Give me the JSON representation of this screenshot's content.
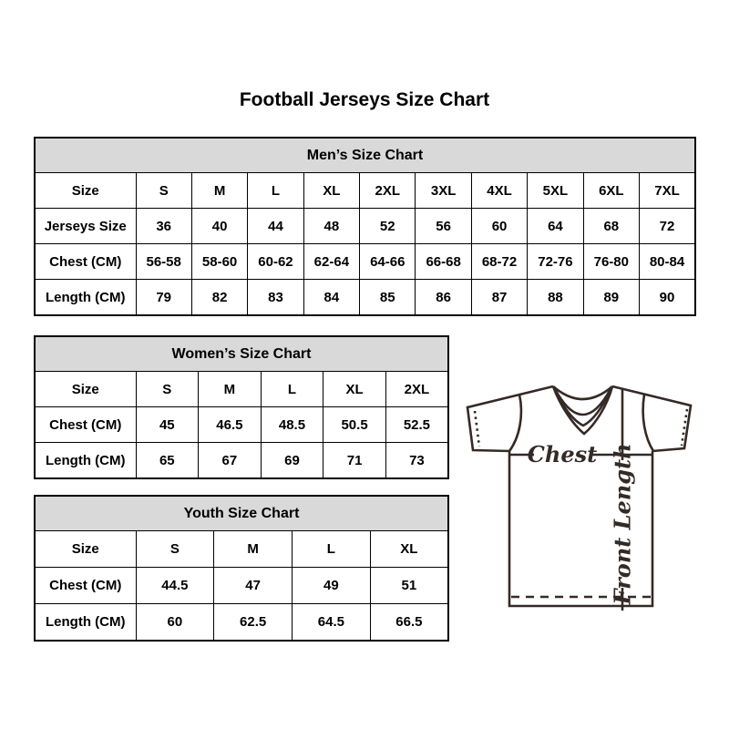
{
  "page": {
    "title": "Football Jerseys Size Chart"
  },
  "colors": {
    "background": "#ffffff",
    "table_header_bg": "#d9d9d9",
    "table_border": "#000000",
    "text": "#000000",
    "diagram_line": "#342a26"
  },
  "tables": {
    "mens": {
      "title": "Men’s Size Chart",
      "rows": [
        [
          "Size",
          "S",
          "M",
          "L",
          "XL",
          "2XL",
          "3XL",
          "4XL",
          "5XL",
          "6XL",
          "7XL"
        ],
        [
          "Jerseys Size",
          "36",
          "40",
          "44",
          "48",
          "52",
          "56",
          "60",
          "64",
          "68",
          "72"
        ],
        [
          "Chest (CM)",
          "56-58",
          "58-60",
          "60-62",
          "62-64",
          "64-66",
          "66-68",
          "68-72",
          "72-76",
          "76-80",
          "80-84"
        ],
        [
          "Length (CM)",
          "79",
          "82",
          "83",
          "84",
          "85",
          "86",
          "87",
          "88",
          "89",
          "90"
        ]
      ]
    },
    "womens": {
      "title": "Women’s Size Chart",
      "rows": [
        [
          "Size",
          "S",
          "M",
          "L",
          "XL",
          "2XL"
        ],
        [
          "Chest (CM)",
          "45",
          "46.5",
          "48.5",
          "50.5",
          "52.5"
        ],
        [
          "Length (CM)",
          "65",
          "67",
          "69",
          "71",
          "73"
        ]
      ]
    },
    "youth": {
      "title": "Youth Size Chart",
      "rows": [
        [
          "Size",
          "S",
          "M",
          "L",
          "XL"
        ],
        [
          "Chest (CM)",
          "44.5",
          "47",
          "49",
          "51"
        ],
        [
          "Length (CM)",
          "60",
          "62.5",
          "64.5",
          "66.5"
        ]
      ]
    }
  },
  "diagram": {
    "chest_label": "Chest",
    "front_length_label": "Front Length"
  }
}
